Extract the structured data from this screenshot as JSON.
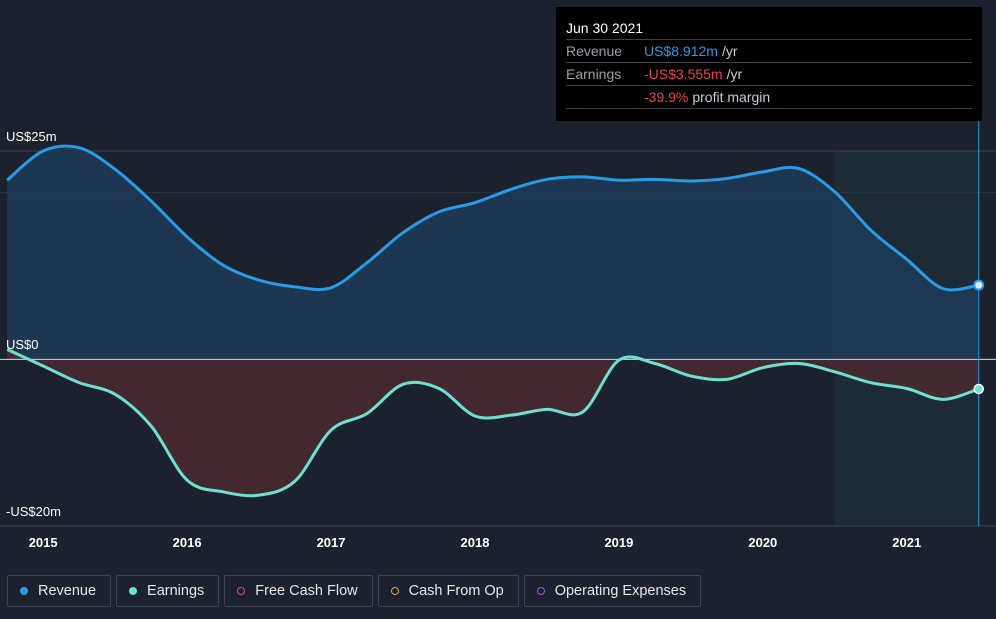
{
  "tooltip": {
    "date": "Jun 30 2021",
    "revenue_label": "Revenue",
    "revenue_value": "US$8.912m",
    "revenue_unit": "/yr",
    "earnings_label": "Earnings",
    "earnings_value": "-US$3.555m",
    "earnings_unit": "/yr",
    "margin_value": "-39.9%",
    "margin_label": "profit margin"
  },
  "legend": [
    {
      "label": "Revenue",
      "color": "#2a9be6",
      "filled": true
    },
    {
      "label": "Earnings",
      "color": "#6ee0cf",
      "filled": true
    },
    {
      "label": "Free Cash Flow",
      "color": "#e0479e",
      "filled": false
    },
    {
      "label": "Cash From Op",
      "color": "#e0a050",
      "filled": false
    },
    {
      "label": "Operating Expenses",
      "color": "#a05ae0",
      "filled": false
    }
  ],
  "colors": {
    "revenue": "#2a9be6",
    "earnings": "#6ee0cf",
    "revenue_fill": "#1e3a57",
    "earnings_fill": "#4a2a30",
    "negative": "#e8434c",
    "highlight": "#2a9be6"
  },
  "chart_data": {
    "type": "area",
    "y_tick_labels": [
      "US$25m",
      "US$0",
      "-US$20m"
    ],
    "x_tick_labels": [
      "2015",
      "2016",
      "2017",
      "2018",
      "2019",
      "2020",
      "2021"
    ],
    "ylim": [
      -20,
      25
    ],
    "xlim": [
      2014.7,
      2021.62
    ],
    "highlight_start": 2020.5,
    "current_x": 2021.5,
    "series": [
      {
        "name": "Revenue",
        "x": [
          2014.75,
          2015.0,
          2015.25,
          2015.5,
          2015.75,
          2016.0,
          2016.25,
          2016.5,
          2016.75,
          2017.0,
          2017.25,
          2017.5,
          2017.75,
          2018.0,
          2018.25,
          2018.5,
          2018.75,
          2019.0,
          2019.25,
          2019.5,
          2019.75,
          2020.0,
          2020.25,
          2020.5,
          2020.75,
          2021.0,
          2021.25,
          2021.5
        ],
        "values": [
          21.5,
          25.0,
          25.4,
          22.8,
          19.0,
          14.7,
          11.3,
          9.5,
          8.7,
          8.6,
          11.6,
          15.2,
          17.7,
          18.8,
          20.4,
          21.6,
          21.9,
          21.5,
          21.6,
          21.4,
          21.7,
          22.5,
          22.9,
          20.1,
          15.5,
          12.0,
          8.5,
          8.9
        ]
      },
      {
        "name": "Earnings",
        "x": [
          2014.75,
          2015.0,
          2015.25,
          2015.5,
          2015.75,
          2016.0,
          2016.25,
          2016.5,
          2016.75,
          2017.0,
          2017.25,
          2017.5,
          2017.75,
          2018.0,
          2018.25,
          2018.5,
          2018.75,
          2019.0,
          2019.25,
          2019.5,
          2019.75,
          2020.0,
          2020.25,
          2020.5,
          2020.75,
          2021.0,
          2021.25,
          2021.5
        ],
        "values": [
          1.2,
          -0.8,
          -2.8,
          -4.2,
          -8.0,
          -14.5,
          -15.9,
          -16.3,
          -14.6,
          -8.5,
          -6.5,
          -3.0,
          -3.5,
          -6.8,
          -6.7,
          -6.0,
          -6.3,
          -0.1,
          -0.5,
          -2.0,
          -2.4,
          -1.0,
          -0.5,
          -1.5,
          -2.8,
          -3.5,
          -4.8,
          -3.555
        ]
      }
    ]
  }
}
